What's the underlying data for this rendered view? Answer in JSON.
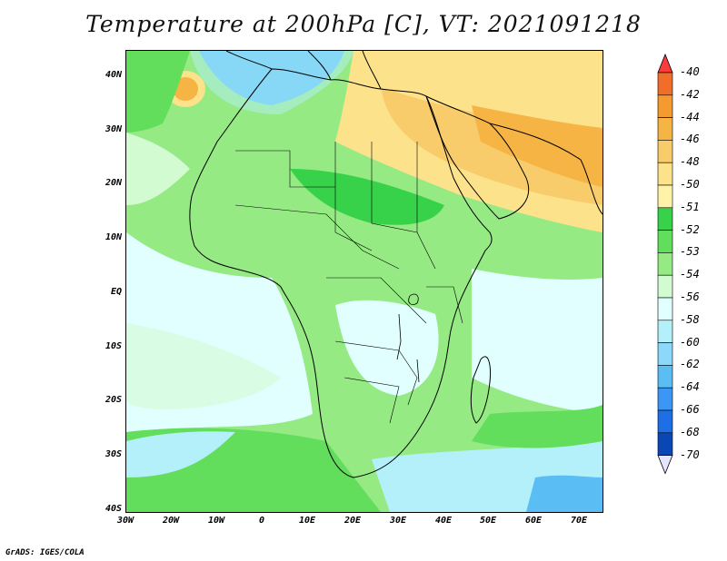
{
  "title": "Temperature at 200hPa [C], VT: 2021091218",
  "credit": "GrADS: IGES/COLA",
  "axes": {
    "lat_ticks": [
      "40N",
      "30N",
      "20N",
      "10N",
      "EQ",
      "10S",
      "20S",
      "30S",
      "40S"
    ],
    "lon_ticks": [
      "30W",
      "20W",
      "10W",
      "0",
      "10E",
      "20E",
      "30E",
      "40E",
      "50E",
      "60E",
      "70E"
    ]
  },
  "colorbar": {
    "labels": [
      "-40",
      "-42",
      "-44",
      "-46",
      "-48",
      "-50",
      "-51",
      "-52",
      "-53",
      "-54",
      "-56",
      "-58",
      "-60",
      "-62",
      "-64",
      "-66",
      "-68",
      "-70"
    ],
    "colors": [
      "#fa3c3c",
      "#f06e2a",
      "#f59a2f",
      "#f5b444",
      "#f8cc6a",
      "#fde28c",
      "#fff3aa",
      "#37d24a",
      "#62dd5c",
      "#96ea84",
      "#d2fbd2",
      "#e1ffff",
      "#b4f0fa",
      "#8cd8fa",
      "#5abef5",
      "#3c96f5",
      "#1e6ee6",
      "#0a46b4",
      "#0a2878"
    ]
  }
}
